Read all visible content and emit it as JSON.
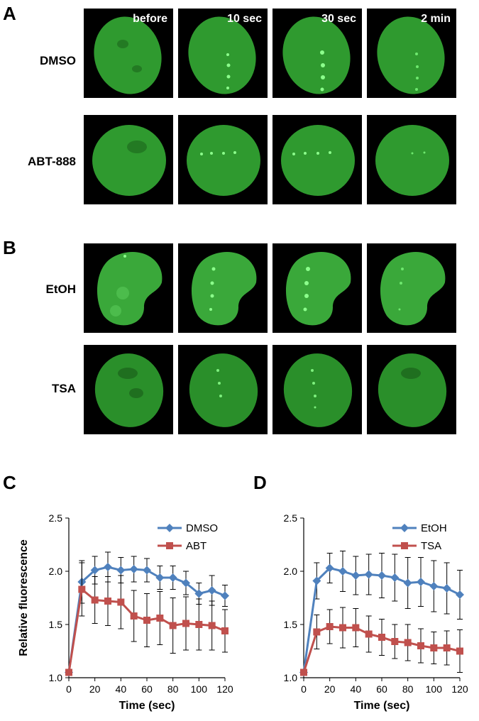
{
  "panels": {
    "A": {
      "letter": "A",
      "columns": [
        "before",
        "10 sec",
        "30 sec",
        "2 min"
      ],
      "rows": [
        "DMSO",
        "ABT-888"
      ]
    },
    "B": {
      "letter": "B",
      "rows": [
        "EtOH",
        "TSA"
      ]
    }
  },
  "chart_data": [
    {
      "panel": "C",
      "type": "line",
      "xlabel": "Time (sec)",
      "ylabel": "Relative fluorescence",
      "xlim": [
        0,
        120
      ],
      "ylim": [
        1.0,
        2.5
      ],
      "x_ticks": [
        0,
        20,
        40,
        60,
        80,
        100,
        120
      ],
      "y_ticks": [
        "1.0",
        "1.5",
        "2.0",
        "2.5"
      ],
      "legend_position": "top-right",
      "x": [
        0,
        10,
        20,
        30,
        40,
        50,
        60,
        70,
        80,
        90,
        100,
        110,
        120
      ],
      "series": [
        {
          "name": "DMSO",
          "color": "#4f81bd",
          "marker": "diamond",
          "values": [
            1.05,
            1.9,
            2.01,
            2.04,
            2.01,
            2.02,
            2.01,
            1.94,
            1.94,
            1.89,
            1.79,
            1.82,
            1.77
          ],
          "errors": [
            0.0,
            0.2,
            0.13,
            0.14,
            0.12,
            0.12,
            0.11,
            0.11,
            0.11,
            0.11,
            0.1,
            0.14,
            0.1
          ]
        },
        {
          "name": "ABT",
          "color": "#c0504d",
          "marker": "square",
          "values": [
            1.05,
            1.83,
            1.73,
            1.72,
            1.71,
            1.58,
            1.54,
            1.56,
            1.49,
            1.51,
            1.5,
            1.49,
            1.44
          ],
          "errors": [
            0.0,
            0.25,
            0.22,
            0.23,
            0.25,
            0.24,
            0.25,
            0.25,
            0.26,
            0.25,
            0.24,
            0.23,
            0.2
          ]
        }
      ]
    },
    {
      "panel": "D",
      "type": "line",
      "xlabel": "Time (sec)",
      "ylabel": "",
      "xlim": [
        0,
        120
      ],
      "ylim": [
        1.0,
        2.5
      ],
      "x_ticks": [
        0,
        20,
        40,
        60,
        80,
        100,
        120
      ],
      "y_ticks": [
        "1.0",
        "1.5",
        "2.0",
        "2.5"
      ],
      "legend_position": "top-right",
      "x": [
        0,
        10,
        20,
        30,
        40,
        50,
        60,
        70,
        80,
        90,
        100,
        110,
        120
      ],
      "series": [
        {
          "name": "EtOH",
          "color": "#4f81bd",
          "marker": "diamond",
          "values": [
            1.05,
            1.91,
            2.03,
            2.0,
            1.96,
            1.97,
            1.96,
            1.94,
            1.89,
            1.9,
            1.86,
            1.84,
            1.78
          ],
          "errors": [
            0.0,
            0.17,
            0.14,
            0.19,
            0.18,
            0.19,
            0.21,
            0.22,
            0.24,
            0.23,
            0.24,
            0.24,
            0.23
          ]
        },
        {
          "name": "TSA",
          "color": "#c0504d",
          "marker": "square",
          "values": [
            1.05,
            1.43,
            1.48,
            1.47,
            1.47,
            1.41,
            1.38,
            1.34,
            1.33,
            1.3,
            1.28,
            1.28,
            1.25
          ],
          "errors": [
            0.0,
            0.16,
            0.16,
            0.19,
            0.18,
            0.17,
            0.17,
            0.16,
            0.17,
            0.16,
            0.15,
            0.16,
            0.2
          ]
        }
      ]
    }
  ],
  "chart_letters": [
    "C",
    "D"
  ],
  "colors": {
    "nucleus": "#2f9a2f",
    "background": "#000000",
    "spot": "#8cff8c"
  }
}
